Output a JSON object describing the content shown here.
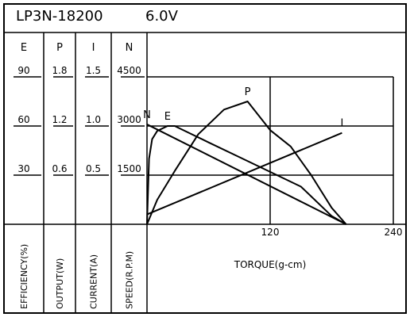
{
  "chart_data": {
    "type": "line",
    "model": "LP3N-18200",
    "voltage": "6.0V",
    "xlabel": "TORQUE(g-cm)",
    "xlim": [
      0,
      240
    ],
    "xticks": [
      120,
      240
    ],
    "grid": true,
    "color": "#000000",
    "axes": [
      {
        "name": "E",
        "label": "EFFICIENCY(%)",
        "ylim": [
          0,
          90
        ],
        "yticks": [
          30,
          60,
          90
        ]
      },
      {
        "name": "P",
        "label": "OUTPUT(W)",
        "ylim": [
          0,
          1.8
        ],
        "yticks": [
          0.6,
          1.2,
          1.8
        ]
      },
      {
        "name": "I",
        "label": "CURRENT(A)",
        "ylim": [
          0,
          1.5
        ],
        "yticks": [
          0.5,
          {
            "value": 1,
            "label": "1.0"
          },
          1.5
        ]
      },
      {
        "name": "N",
        "label": "SPEED(R.P.M)",
        "ylim": [
          0,
          4500
        ],
        "yticks": [
          1500,
          3000,
          4500
        ]
      }
    ],
    "series": [
      {
        "name": "E",
        "axis": 0,
        "x": [
          0,
          2,
          5,
          10,
          20,
          27,
          60,
          90,
          120,
          150,
          180,
          194
        ],
        "values": [
          0,
          40,
          52,
          57,
          60,
          60,
          50,
          41,
          32,
          23,
          5,
          0
        ]
      },
      {
        "name": "P",
        "axis": 1,
        "x": [
          0,
          10,
          27,
          50,
          75,
          98,
          120,
          140,
          160,
          180,
          194
        ],
        "values": [
          0,
          0.3,
          0.65,
          1.1,
          1.4,
          1.5,
          1.15,
          0.95,
          0.6,
          0.2,
          0
        ]
      },
      {
        "name": "I",
        "axis": 2,
        "x": [
          0,
          190
        ],
        "values": [
          0.1,
          0.93
        ]
      },
      {
        "name": "N",
        "axis": 3,
        "x": [
          0,
          194
        ],
        "values": [
          3050,
          0
        ]
      }
    ]
  }
}
